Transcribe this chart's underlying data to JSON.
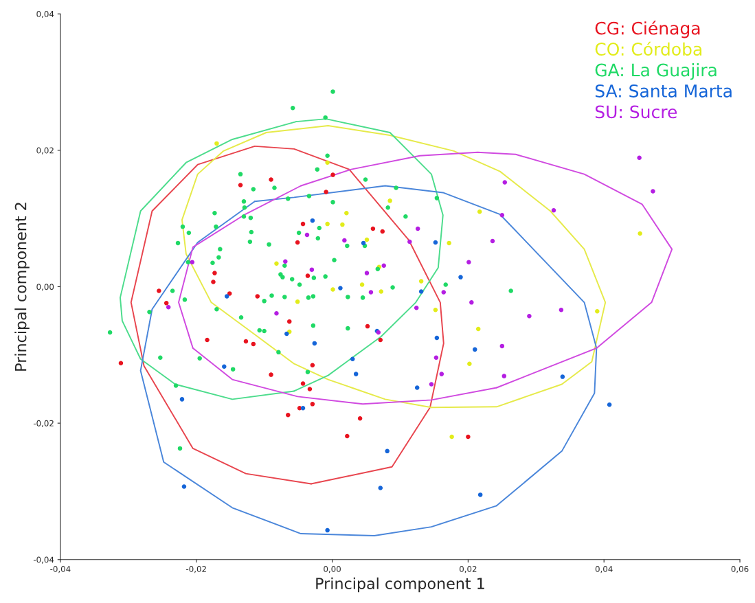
{
  "chart_data": {
    "type": "scatter",
    "xlabel": "Principal component 1",
    "ylabel": "Principal component 2",
    "xlim": [
      -0.04,
      0.06
    ],
    "ylim": [
      -0.04,
      0.04
    ],
    "xticks": [
      {
        "value": -0.04,
        "label": "-0,04"
      },
      {
        "value": -0.02,
        "label": "-0,02"
      },
      {
        "value": 0,
        "label": "0,00"
      },
      {
        "value": 0.02,
        "label": "0,02"
      },
      {
        "value": 0.04,
        "label": "0,04"
      },
      {
        "value": 0.06,
        "label": "0,06"
      }
    ],
    "yticks": [
      {
        "value": -0.04,
        "label": "-0,04"
      },
      {
        "value": -0.02,
        "label": "-0,02"
      },
      {
        "value": 0,
        "label": "0,00"
      },
      {
        "value": 0.02,
        "label": "0,02"
      },
      {
        "value": 0.04,
        "label": "0,04"
      }
    ],
    "legend": "top right",
    "marker": "circle",
    "series": [
      {
        "name": "CG: Ciénaga",
        "color": "#e8131f",
        "x": [
          -0.0311,
          -0.0255,
          -0.0244,
          -0.0173,
          -0.0175,
          -0.0151,
          -0.011,
          -0.0135,
          -0.009,
          -0.0051,
          -0.0184,
          -0.0127,
          -0.0116,
          -0.0063,
          -0.009,
          -0.0048,
          -0.0065,
          0.0001,
          -0.0009,
          -0.0043,
          0.006,
          0.0074,
          -0.0036,
          0.0052,
          0.0071,
          -0.0029,
          -0.0043,
          -0.0033,
          -0.0029,
          0.0041,
          0.0022,
          0.02
        ],
        "values": [
          -0.0112,
          -0.0006,
          -0.0024,
          0.002,
          0.0007,
          -0.001,
          -0.0014,
          0.0149,
          0.0157,
          0.0065,
          -0.0078,
          -0.008,
          -0.0084,
          -0.0051,
          -0.0129,
          -0.0178,
          -0.0188,
          0.0164,
          0.0139,
          0.0092,
          0.0085,
          0.0081,
          0.0016,
          -0.0058,
          -0.0078,
          -0.0115,
          -0.0142,
          -0.015,
          -0.0172,
          -0.0193,
          -0.0219,
          -0.022
        ]
      },
      {
        "name": "CO: Córdoba",
        "color": "#e2ec1a",
        "x": [
          -0.017,
          -0.0082,
          -0.0051,
          -0.0007,
          0.0085,
          0.0217,
          0.0021,
          -0.0007,
          0.0015,
          0.0051,
          0.0172,
          0.0069,
          0.0044,
          0.0131,
          0.0001,
          0.0072,
          0.0453,
          -0.0063,
          0.0152,
          0.0215,
          0.0202,
          0.0176,
          0.039
        ],
        "values": [
          0.021,
          0.0034,
          -0.0022,
          0.0182,
          0.0126,
          0.011,
          0.0108,
          0.0092,
          0.0091,
          0.0069,
          0.0064,
          0.0029,
          0.0003,
          0.0008,
          -0.0004,
          -0.0007,
          0.0078,
          -0.0066,
          -0.0034,
          -0.0062,
          -0.0113,
          -0.022,
          -0.0036
        ]
      },
      {
        "name": "GA: La Guajira",
        "color": "#1fd965",
        "x": [
          -0.0058,
          -0.0135,
          -0.0116,
          -0.0085,
          -0.013,
          -0.0129,
          -0.0065,
          -0.0173,
          -0.0171,
          -0.012,
          -0.013,
          -0.022,
          -0.0211,
          -0.0119,
          -0.0227,
          -0.0121,
          -0.0093,
          -0.0049,
          -0.0165,
          -0.0167,
          -0.0176,
          -0.0212,
          -0.007,
          -0.0076,
          -0.0073,
          -0.0059,
          -0.0048,
          -0.0235,
          -0.0217,
          -0.01,
          -0.0089,
          -0.007,
          -0.017,
          0.0001,
          -0.001,
          -0.0007,
          -0.0022,
          0.0049,
          0.0094,
          -0.0034,
          0.0001,
          0.0154,
          0.0082,
          0.0108,
          -0.0019,
          -0.0021,
          0.0022,
          0.0048,
          0.0003,
          0.0067,
          -0.0027,
          -0.001,
          0.0089,
          0.0167,
          -0.0035,
          -0.0028,
          0.0023,
          0.0045,
          0.0263,
          -0.0269,
          -0.0327,
          -0.0134,
          -0.0107,
          -0.01,
          -0.0253,
          -0.0195,
          -0.0146,
          -0.0079,
          -0.023,
          -0.0224,
          -0.0028,
          0.0023,
          -0.0036
        ],
        "values": [
          0.0262,
          0.0165,
          0.0143,
          0.0145,
          0.0125,
          0.0116,
          0.0129,
          0.0108,
          0.0088,
          0.0101,
          0.0103,
          0.0088,
          0.0079,
          0.008,
          0.0064,
          0.0066,
          0.0062,
          0.0079,
          0.0055,
          0.0043,
          0.0035,
          0.0036,
          0.0031,
          0.0018,
          0.0014,
          0.0011,
          0.0003,
          -0.0006,
          -0.0019,
          -0.0021,
          -0.0013,
          -0.0015,
          -0.0033,
          0.0286,
          0.0248,
          0.0192,
          0.0172,
          0.0157,
          0.0145,
          0.0133,
          0.0124,
          0.013,
          0.0116,
          0.0103,
          0.0086,
          0.0071,
          0.006,
          0.006,
          0.0039,
          0.0026,
          0.0013,
          0.0015,
          -0.0001,
          0.0003,
          -0.0016,
          -0.0014,
          -0.0015,
          -0.0016,
          -0.0006,
          -0.0037,
          -0.0067,
          -0.0045,
          -0.0064,
          -0.0065,
          -0.0104,
          -0.0105,
          -0.0121,
          -0.0096,
          -0.0145,
          -0.0237,
          -0.0057,
          -0.0061,
          -0.0125
        ]
      },
      {
        "name": "SA: Santa Marta",
        "color": "#1565d8",
        "x": [
          -0.0155,
          -0.0029,
          0.0046,
          0.0152,
          0.0189,
          0.0012,
          0.0131,
          -0.0067,
          -0.0159,
          -0.0221,
          -0.0218,
          0.0066,
          -0.0026,
          0.003,
          0.0035,
          0.0154,
          0.021,
          0.0125,
          -0.0043,
          0.0081,
          0.0071,
          0.0218,
          -0.0007,
          0.0339,
          0.0408
        ],
        "values": [
          -0.0014,
          0.0097,
          0.0064,
          0.0065,
          0.0014,
          -0.0002,
          -0.0007,
          -0.0069,
          -0.0117,
          -0.0165,
          -0.0293,
          -0.0065,
          -0.0083,
          -0.0106,
          -0.0128,
          -0.0075,
          -0.0092,
          -0.0148,
          -0.0178,
          -0.0241,
          -0.0295,
          -0.0305,
          -0.0357,
          -0.0132,
          -0.0173
        ]
      },
      {
        "name": "SU: Sucre",
        "color": "#b41ee2",
        "x": [
          -0.0206,
          -0.0069,
          -0.0241,
          -0.0082,
          -0.0037,
          0.0018,
          0.0126,
          0.0114,
          0.0236,
          0.0201,
          0.0076,
          -0.003,
          0.0051,
          0.0057,
          0.0164,
          0.0205,
          0.0124,
          0.0452,
          0.0472,
          0.0254,
          0.0326,
          0.025,
          0.0337,
          0.0068,
          0.0153,
          0.0161,
          0.0146,
          0.029,
          0.025,
          0.0253
        ],
        "values": [
          0.0036,
          0.0037,
          -0.003,
          -0.0039,
          0.0076,
          0.0068,
          0.0085,
          0.0066,
          0.0067,
          0.0036,
          0.0031,
          0.0025,
          0.002,
          -0.0008,
          -0.0008,
          -0.0023,
          -0.0031,
          0.0189,
          0.014,
          0.0153,
          0.0112,
          0.0105,
          -0.0034,
          -0.0067,
          -0.0104,
          -0.0128,
          -0.0143,
          -0.0043,
          -0.0087,
          -0.0131
        ]
      },
      {
        "type": "line",
        "marker": "none",
        "color": "#e8454e",
        "x": [
          -0.0114,
          -0.0056,
          0.0025,
          0.0113,
          0.0159,
          0.0164,
          0.0144,
          0.0088,
          -0.0031,
          -0.0127,
          -0.0205,
          -0.0277,
          -0.0296,
          -0.0265,
          -0.0198,
          -0.0114
        ],
        "values": [
          0.0206,
          0.0202,
          0.0172,
          0.0068,
          -0.0023,
          -0.0083,
          -0.0177,
          -0.0264,
          -0.0289,
          -0.0274,
          -0.0237,
          -0.0116,
          -0.0023,
          0.0111,
          0.0179,
          0.0206
        ]
      },
      {
        "type": "line",
        "marker": "none",
        "color": "#e6ea4a",
        "x": [
          -0.0097,
          -0.0006,
          0.0085,
          0.0179,
          0.0247,
          0.0321,
          0.0371,
          0.0402,
          0.0382,
          0.0338,
          0.0242,
          0.0146,
          0.0078,
          -0.0006,
          -0.0056,
          -0.0114,
          -0.0178,
          -0.0215,
          -0.0221,
          -0.0198,
          -0.016,
          -0.0097
        ],
        "values": [
          0.0226,
          0.0236,
          0.0222,
          0.0199,
          0.0169,
          0.0111,
          0.0055,
          -0.0023,
          -0.011,
          -0.0143,
          -0.0176,
          -0.0177,
          -0.0165,
          -0.0136,
          -0.0113,
          -0.007,
          -0.0023,
          0.0048,
          0.0098,
          0.0165,
          0.0199,
          0.0226
        ]
      },
      {
        "type": "line",
        "marker": "none",
        "color": "#4cdc8c",
        "x": [
          -0.0053,
          -0.0009,
          0.0085,
          0.0146,
          0.0163,
          0.0156,
          0.0123,
          0.0072,
          -0.0006,
          -0.0056,
          -0.0147,
          -0.0231,
          -0.0282,
          -0.0309,
          -0.0312,
          -0.0282,
          -0.0215,
          -0.0147,
          -0.0053
        ],
        "values": [
          0.0242,
          0.0246,
          0.0226,
          0.0165,
          0.0105,
          0.0028,
          -0.0023,
          -0.0073,
          -0.013,
          -0.0153,
          -0.0165,
          -0.0143,
          -0.0106,
          -0.005,
          -0.0016,
          0.0111,
          0.0182,
          0.0216,
          0.0242
        ]
      },
      {
        "type": "line",
        "marker": "none",
        "color": "#4a86da",
        "x": [
          -0.0114,
          -0.0056,
          0.0078,
          0.0163,
          0.0247,
          0.0371,
          0.0389,
          0.0386,
          0.0338,
          0.0242,
          0.0146,
          0.0062,
          -0.0046,
          -0.0147,
          -0.0248,
          -0.0282,
          -0.0265,
          -0.0198,
          -0.0114
        ],
        "values": [
          0.0125,
          0.0131,
          0.0148,
          0.0138,
          0.0106,
          -0.0023,
          -0.009,
          -0.0156,
          -0.0241,
          -0.0321,
          -0.0352,
          -0.0365,
          -0.0362,
          -0.0324,
          -0.0257,
          -0.0123,
          -0.0033,
          0.0065,
          0.0125
        ]
      },
      {
        "type": "line",
        "marker": "none",
        "color": "#d04ae0",
        "x": [
          -0.0046,
          0.0028,
          0.0129,
          0.0214,
          0.027,
          0.0371,
          0.0456,
          0.05,
          0.047,
          0.0389,
          0.0242,
          0.0146,
          0.0045,
          -0.0051,
          -0.0147,
          -0.0205,
          -0.0226,
          -0.0205,
          -0.013,
          -0.0046
        ],
        "values": [
          0.0148,
          0.0172,
          0.0192,
          0.0197,
          0.0194,
          0.0165,
          0.0121,
          0.0055,
          -0.0023,
          -0.009,
          -0.0148,
          -0.0166,
          -0.0172,
          -0.0161,
          -0.0136,
          -0.009,
          -0.0023,
          0.0058,
          0.0105,
          0.0148
        ]
      }
    ]
  }
}
